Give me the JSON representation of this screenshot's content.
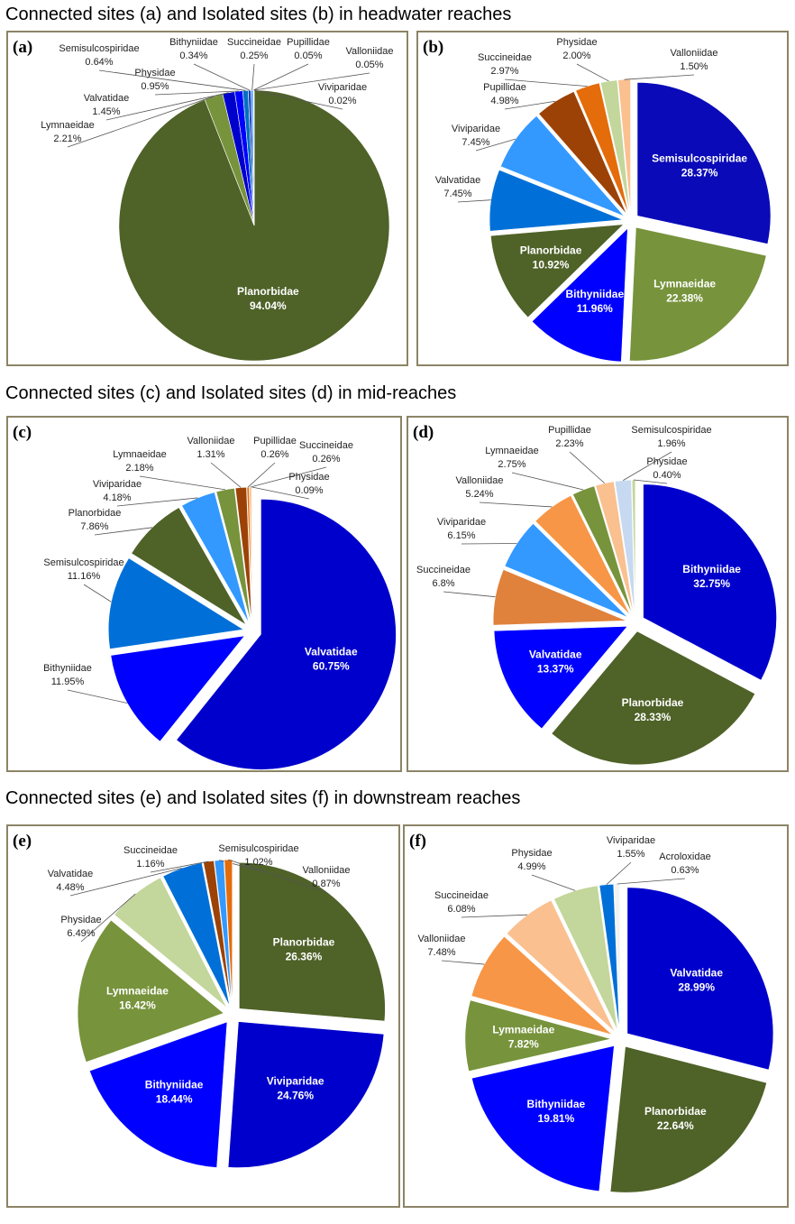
{
  "headings": [
    "Connected sites (a) and Isolated sites (b) in headwater reaches",
    "Connected sites (c) and Isolated sites (d) in mid-reaches",
    "Connected sites (e) and Isolated sites (f) in downstream reaches"
  ],
  "chart_data": [
    {
      "type": "pie",
      "label": "(a)",
      "categories": [
        "Planorbidae",
        "Lymnaeidae",
        "Valvatidae",
        "Physidae",
        "Semisulcospiridae",
        "Bithyniidae",
        "Succineidae",
        "Pupillidae",
        "Valloniidae",
        "Viviparidae"
      ],
      "values": [
        94.04,
        2.21,
        1.45,
        0.95,
        0.64,
        0.34,
        0.25,
        0.05,
        0.05,
        0.02
      ],
      "value_labels": [
        "94.04%",
        "2.21%",
        "1.45%",
        "0.95%",
        "0.64%",
        "0.34%",
        "0.25%",
        "0.05%",
        "0.05%",
        "0.02%"
      ],
      "colors": [
        "#4f6228",
        "#77933c",
        "#0000cc",
        "#0000ff",
        "#0070c0",
        "#1f3fbf",
        "#3399ff",
        "#9bbb59",
        "#c3d69b",
        "#b9cde5"
      ]
    },
    {
      "type": "pie",
      "label": "(b)",
      "categories": [
        "Semisulcospiridae",
        "Lymnaeidae",
        "Bithyniidae",
        "Planorbidae",
        "Valvatidae",
        "Viviparidae",
        "Pupillidae",
        "Succineidae",
        "Physidae",
        "Valloniidae"
      ],
      "values": [
        28.37,
        22.38,
        11.96,
        10.92,
        7.45,
        7.45,
        4.98,
        2.97,
        2.0,
        1.5
      ],
      "value_labels": [
        "28.37%",
        "22.38%",
        "11.96%",
        "10.92%",
        "7.45%",
        "7.45%",
        "4.98%",
        "2.97%",
        "2.00%",
        "1.50%"
      ],
      "colors": [
        "#0a0ab8",
        "#77933c",
        "#0000ff",
        "#4f6228",
        "#0070d8",
        "#3399ff",
        "#9c4206",
        "#e46c0a",
        "#c3d69b",
        "#fac090"
      ]
    },
    {
      "type": "pie",
      "label": "(c)",
      "categories": [
        "Valvatidae",
        "Bithyniidae",
        "Semisulcospiridae",
        "Planorbidae",
        "Viviparidae",
        "Lymnaeidae",
        "Valloniidae",
        "Pupillidae",
        "Succineidae",
        "Physidae"
      ],
      "values": [
        60.75,
        11.95,
        11.16,
        7.86,
        4.18,
        2.18,
        1.31,
        0.26,
        0.26,
        0.09
      ],
      "value_labels": [
        "60.75%",
        "11.95%",
        "11.16%",
        "7.86%",
        "4.18%",
        "2.18%",
        "1.31%",
        "0.26%",
        "0.26%",
        "0.09%"
      ],
      "colors": [
        "#0000cc",
        "#0000ff",
        "#0070d8",
        "#4f6228",
        "#3399ff",
        "#77933c",
        "#9c4206",
        "#e46c0a",
        "#fac090",
        "#c3d69b"
      ]
    },
    {
      "type": "pie",
      "label": "(d)",
      "categories": [
        "Bithyniidae",
        "Planorbidae",
        "Valvatidae",
        "Succineidae",
        "Viviparidae",
        "Valloniidae",
        "Lymnaeidae",
        "Pupillidae",
        "Semisulcospiridae",
        "Physidae"
      ],
      "values": [
        32.75,
        28.33,
        13.37,
        6.8,
        6.15,
        5.24,
        2.75,
        2.23,
        1.96,
        0.4
      ],
      "value_labels": [
        "32.75%",
        "28.33%",
        "13.37%",
        "6.8%",
        "6.15%",
        "5.24%",
        "2.75%",
        "2.23%",
        "1.96%",
        "0.40%"
      ],
      "colors": [
        "#0000cc",
        "#4f6228",
        "#0000ff",
        "#e0823c",
        "#3399ff",
        "#f79646",
        "#77933c",
        "#fac090",
        "#c6d9f1",
        "#c3d69b"
      ]
    },
    {
      "type": "pie",
      "label": "(e)",
      "categories": [
        "Planorbidae",
        "Viviparidae",
        "Bithyniidae",
        "Lymnaeidae",
        "Physidae",
        "Valvatidae",
        "Succineidae",
        "Semisulcospiridae",
        "Valloniidae"
      ],
      "values": [
        26.36,
        24.76,
        18.44,
        16.42,
        6.49,
        4.48,
        1.16,
        1.02,
        0.87
      ],
      "value_labels": [
        "26.36%",
        "24.76%",
        "18.44%",
        "16.42%",
        "6.49%",
        "4.48%",
        "1.16%",
        "1.02%",
        "0.87%"
      ],
      "colors": [
        "#4f6228",
        "#0000cc",
        "#0000ff",
        "#77933c",
        "#c3d69b",
        "#0070d8",
        "#9c4206",
        "#3399ff",
        "#e46c0a"
      ]
    },
    {
      "type": "pie",
      "label": "(f)",
      "categories": [
        "Valvatidae",
        "Planorbidae",
        "Bithyniidae",
        "Lymnaeidae",
        "Valloniidae",
        "Succineidae",
        "Physidae",
        "Viviparidae",
        "Acroloxidae"
      ],
      "values": [
        28.99,
        22.64,
        19.81,
        7.82,
        7.48,
        6.08,
        4.99,
        1.55,
        0.63
      ],
      "value_labels": [
        "28.99%",
        "22.64%",
        "19.81%",
        "7.82%",
        "7.48%",
        "6.08%",
        "4.99%",
        "1.55%",
        "0.63%"
      ],
      "colors": [
        "#0000cc",
        "#4f6228",
        "#0000ff",
        "#77933c",
        "#f79646",
        "#fac090",
        "#c3d69b",
        "#0070d8",
        "#f2f2f2"
      ]
    }
  ]
}
